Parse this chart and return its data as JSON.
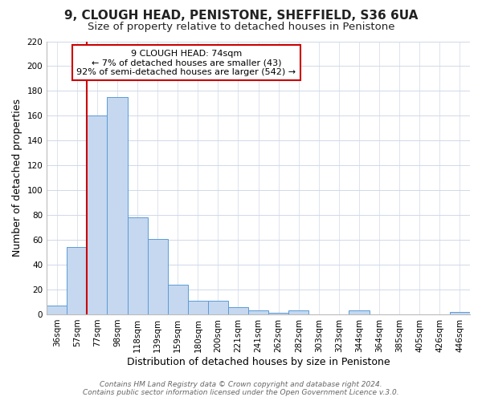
{
  "title": "9, CLOUGH HEAD, PENISTONE, SHEFFIELD, S36 6UA",
  "subtitle": "Size of property relative to detached houses in Penistone",
  "xlabel": "Distribution of detached houses by size in Penistone",
  "ylabel": "Number of detached properties",
  "bar_labels": [
    "36sqm",
    "57sqm",
    "77sqm",
    "98sqm",
    "118sqm",
    "139sqm",
    "159sqm",
    "180sqm",
    "200sqm",
    "221sqm",
    "241sqm",
    "262sqm",
    "282sqm",
    "303sqm",
    "323sqm",
    "344sqm",
    "364sqm",
    "385sqm",
    "405sqm",
    "426sqm",
    "446sqm"
  ],
  "bar_values": [
    7,
    54,
    160,
    175,
    78,
    61,
    24,
    11,
    11,
    6,
    3,
    1,
    3,
    0,
    0,
    3,
    0,
    0,
    0,
    0,
    2
  ],
  "bar_color": "#c5d8f0",
  "bar_edge_color": "#5b9bd5",
  "vline_x_idx": 1.5,
  "vline_color": "#cc0000",
  "ylim": [
    0,
    220
  ],
  "yticks": [
    0,
    20,
    40,
    60,
    80,
    100,
    120,
    140,
    160,
    180,
    200,
    220
  ],
  "annotation_title": "9 CLOUGH HEAD: 74sqm",
  "annotation_line1": "← 7% of detached houses are smaller (43)",
  "annotation_line2": "92% of semi-detached houses are larger (542) →",
  "annotation_box_color": "#ffffff",
  "annotation_box_edge": "#cc0000",
  "footer1": "Contains HM Land Registry data © Crown copyright and database right 2024.",
  "footer2": "Contains public sector information licensed under the Open Government Licence v.3.0.",
  "title_fontsize": 11,
  "subtitle_fontsize": 9.5,
  "tick_fontsize": 7.5,
  "axis_label_fontsize": 9,
  "annot_fontsize": 8,
  "footer_fontsize": 6.5
}
